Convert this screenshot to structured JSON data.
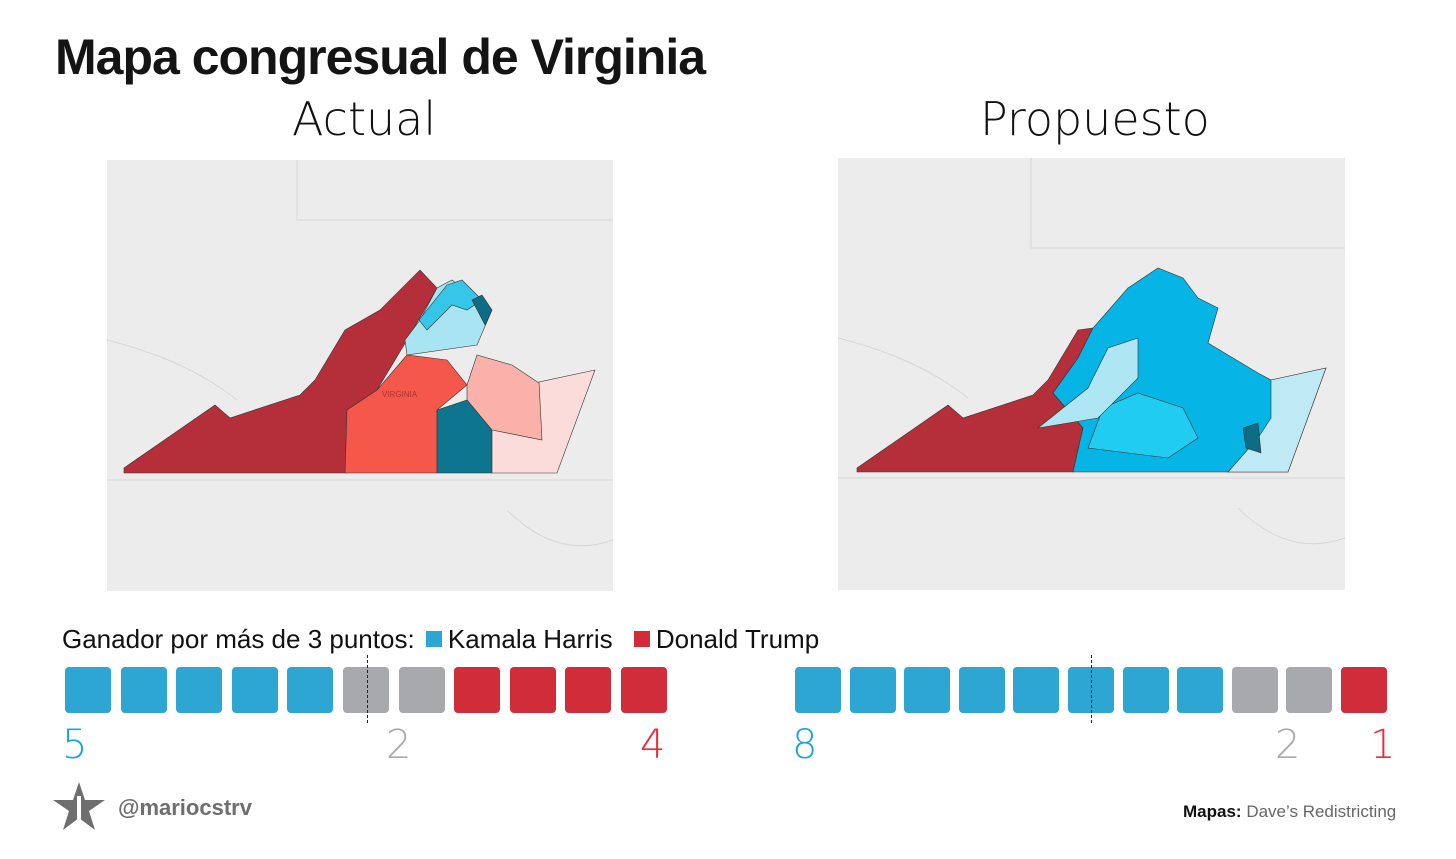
{
  "title": "Mapa congresual de Virginia",
  "colors": {
    "harris": "#2ea6d3",
    "trump": "#d02c3a",
    "tossup": "#a7a9ac",
    "harris_num": "#1aa3dc",
    "trump_num": "#ee2a3a",
    "tossup_num": "#a7a9ac"
  },
  "legend": {
    "label": "Ganador por más de 3 puntos:",
    "harris": "Kamala Harris",
    "trump": "Donald Trump"
  },
  "map_label": "VIRGINIA",
  "footer": {
    "handle": "@mariocstrv",
    "credit_label": "Mapas:",
    "credit_value": "Dave’s Redistricting"
  },
  "chart_data": [
    {
      "type": "table",
      "title": "Actual",
      "seats": [
        "harris",
        "harris",
        "harris",
        "harris",
        "harris",
        "tossup",
        "tossup",
        "trump",
        "trump",
        "trump",
        "trump"
      ],
      "counts": {
        "harris": "5",
        "tossup": "2",
        "trump": "4"
      },
      "majority_line_after": 5.5
    },
    {
      "type": "table",
      "title": "Propuesto",
      "seats": [
        "harris",
        "harris",
        "harris",
        "harris",
        "harris",
        "harris",
        "harris",
        "harris",
        "tossup",
        "tossup",
        "trump"
      ],
      "counts": {
        "harris": "8",
        "tossup": "2",
        "trump": "1"
      },
      "majority_line_after": 5.5
    }
  ]
}
